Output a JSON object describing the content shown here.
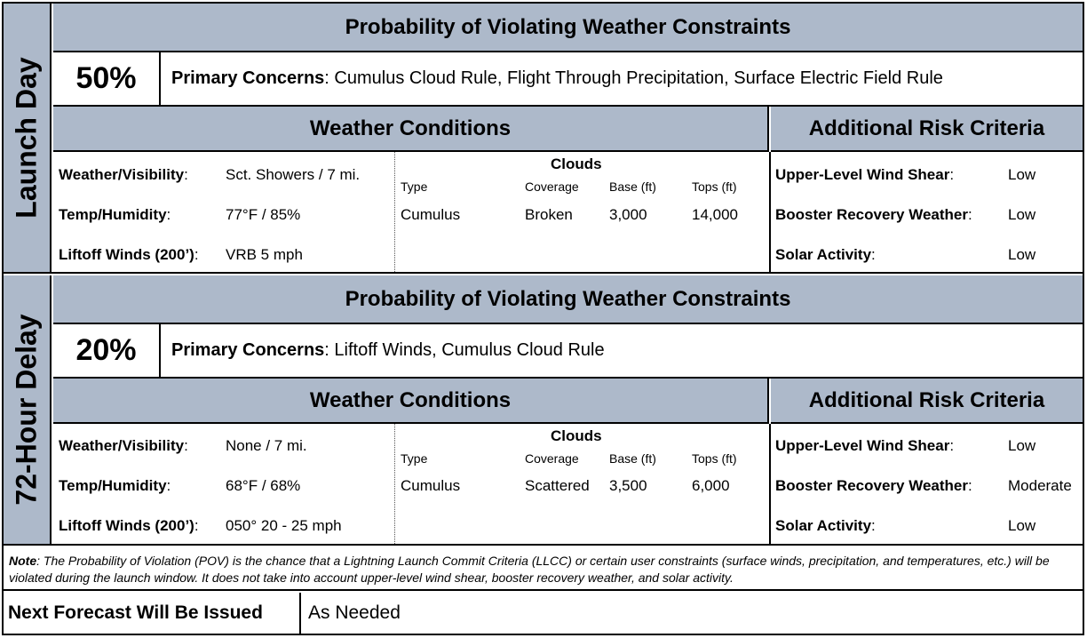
{
  "forecast": {
    "note_label": "Note",
    "note_text": ": The Probability of Violation (POV) is the chance that a Lightning Launch Commit Criteria (LLCC) or certain user constraints (surface winds, precipitation, and temperatures, etc.) will be violated during the launch window. It does not take into account upper-level wind shear, booster recovery weather, and solar activity.",
    "next_label": "Next Forecast Will Be Issued",
    "next_value": "As Needed"
  },
  "sections": [
    {
      "side_label": "Launch Day",
      "pov_heading": "Probability of Violating Weather Constraints",
      "pov": "50%",
      "concerns_label": "Primary Concerns",
      "concerns": ": Cumulus Cloud Rule, Flight Through Precipitation, Surface Electric Field Rule",
      "weather_heading": "Weather Conditions",
      "risk_heading": "Additional Risk Criteria",
      "weather": [
        {
          "label": "Weather/Visibility",
          "sep": ":",
          "value": "Sct. Showers  / 7 mi."
        },
        {
          "label": "Temp/Humidity",
          "sep": ":",
          "value": "77°F / 85%"
        },
        {
          "label": "Liftoff Winds (200’)",
          "sep": ":",
          "value": "VRB 5 mph"
        }
      ],
      "clouds": {
        "title": "Clouds",
        "headers": [
          "Type",
          "Coverage",
          "Base (ft)",
          "Tops (ft)"
        ],
        "row": [
          "Cumulus",
          "Broken",
          "3,000",
          "14,000"
        ]
      },
      "risk": [
        {
          "label": "Upper-Level Wind Shear",
          "sep": ":",
          "value": "Low"
        },
        {
          "label": "Booster Recovery Weather",
          "sep": ":",
          "value": "Low"
        },
        {
          "label": "Solar Activity",
          "sep": ":",
          "value": "Low"
        }
      ]
    },
    {
      "side_label": "72-Hour Delay",
      "pov_heading": "Probability of Violating Weather Constraints",
      "pov": "20%",
      "concerns_label": "Primary Concerns",
      "concerns": ":  Liftoff Winds, Cumulus Cloud Rule",
      "weather_heading": "Weather Conditions",
      "risk_heading": "Additional Risk Criteria",
      "weather": [
        {
          "label": "Weather/Visibility",
          "sep": ":",
          "value": "None / 7 mi."
        },
        {
          "label": "Temp/Humidity",
          "sep": ":",
          "value": "68°F / 68%"
        },
        {
          "label": "Liftoff Winds (200’)",
          "sep": ":",
          "value": "050° 20 - 25 mph"
        }
      ],
      "clouds": {
        "title": "Clouds",
        "headers": [
          "Type",
          "Coverage",
          "Base (ft)",
          "Tops (ft)"
        ],
        "row": [
          "Cumulus",
          "Scattered",
          "3,500",
          "6,000"
        ]
      },
      "risk": [
        {
          "label": "Upper-Level Wind Shear",
          "sep": ":",
          "value": "Low"
        },
        {
          "label": "Booster Recovery Weather",
          "sep": ":",
          "value": "Moderate"
        },
        {
          "label": "Solar Activity",
          "sep": ":",
          "value": "Low"
        }
      ]
    }
  ]
}
